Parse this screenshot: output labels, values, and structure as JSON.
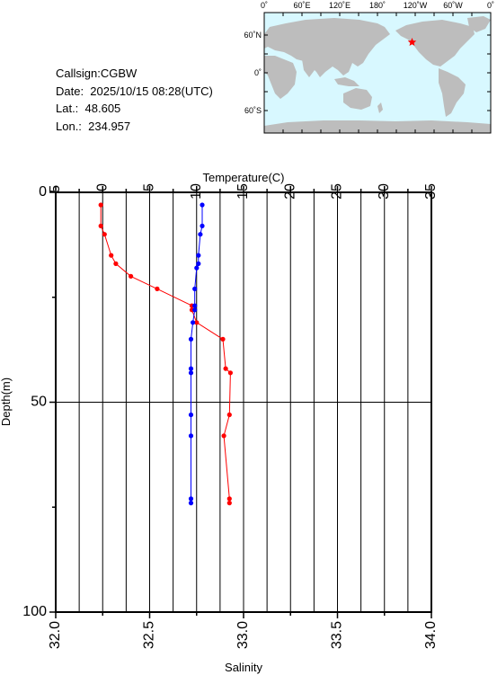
{
  "info": {
    "callsign": "Callsign:CGBW",
    "date": "Date:  2025/10/15 08:28(UTC)",
    "lat": "Lat.:  48.605",
    "lon": "Lon.:  234.957"
  },
  "map": {
    "top_labels": [
      "0˚",
      "60˚E",
      "120˚E",
      "180˚",
      "120˚W",
      "60˚W",
      "0˚"
    ],
    "lat_labels": [
      "60˚N",
      "0˚",
      "60˚S"
    ],
    "ocean_color": "#d8f8ff",
    "land_color": "#bdbdbd",
    "marker_color": "#ff0000",
    "marker": {
      "lon": 234.957,
      "lat": 48.605
    }
  },
  "chart_data": {
    "type": "line",
    "top_axis_title": "Temperature(C)",
    "bottom_axis_title": "Salinity",
    "left_axis_title": "Depth(m)",
    "temp_ticks": [
      "-5",
      "0",
      "5",
      "10",
      "15",
      "20",
      "25",
      "30",
      "35"
    ],
    "sal_ticks": [
      "32.0",
      "32.5",
      "33.0",
      "33.5",
      "34.0"
    ],
    "depth_ticks": [
      "0",
      "50",
      "100"
    ],
    "temp_range": [
      -5,
      35
    ],
    "sal_range": [
      32.0,
      34.0
    ],
    "depth_range": [
      0,
      100
    ],
    "grid": true,
    "series": [
      {
        "color": "#ff0000",
        "axis": "temperature",
        "points": [
          [
            3,
            -0.2
          ],
          [
            8,
            -0.2
          ],
          [
            10,
            0.2
          ],
          [
            15,
            0.9
          ],
          [
            17,
            1.4
          ],
          [
            20,
            3.0
          ],
          [
            23,
            5.8
          ],
          [
            27,
            9.5
          ],
          [
            28,
            9.5
          ],
          [
            31,
            10.0
          ],
          [
            35,
            12.8
          ],
          [
            42,
            13.1
          ],
          [
            43,
            13.6
          ],
          [
            53,
            13.5
          ],
          [
            58,
            12.9
          ],
          [
            73,
            13.5
          ],
          [
            74,
            13.5
          ]
        ]
      },
      {
        "color": "#0000ff",
        "axis": "salinity",
        "points": [
          [
            3,
            32.78
          ],
          [
            8,
            32.78
          ],
          [
            10,
            32.77
          ],
          [
            15,
            32.76
          ],
          [
            17,
            32.76
          ],
          [
            18,
            32.75
          ],
          [
            23,
            32.74
          ],
          [
            27,
            32.74
          ],
          [
            28,
            32.74
          ],
          [
            31,
            32.73
          ],
          [
            35,
            32.72
          ],
          [
            42,
            32.72
          ],
          [
            43,
            32.72
          ],
          [
            53,
            32.72
          ],
          [
            58,
            32.72
          ],
          [
            73,
            32.72
          ],
          [
            74,
            32.72
          ]
        ]
      }
    ]
  }
}
